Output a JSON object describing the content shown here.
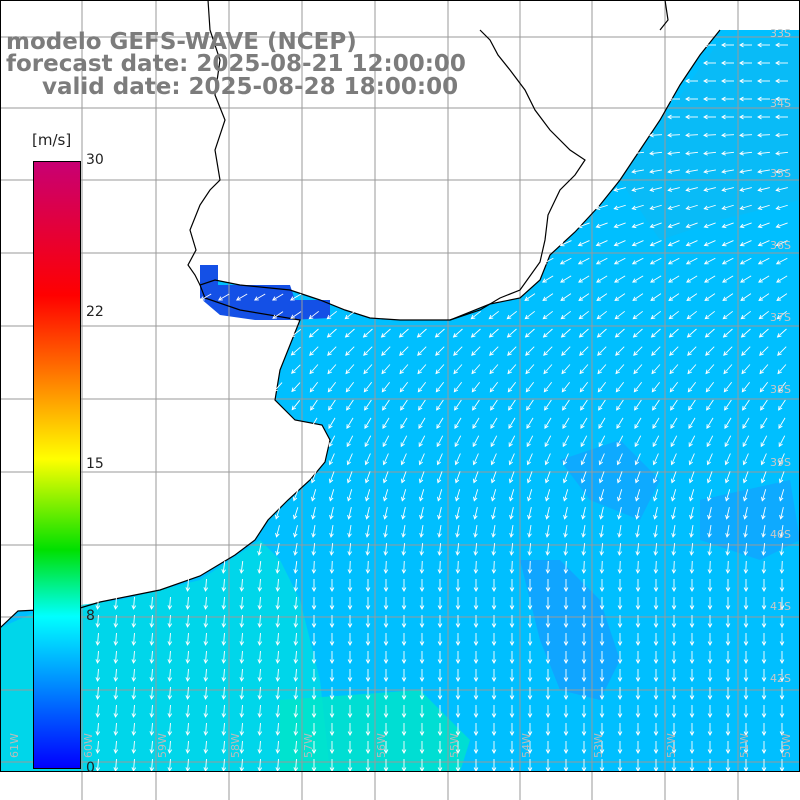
{
  "title": {
    "line1": "modelo GEFS-WAVE (NCEP)",
    "line2": "forecast date: 2025-08-21 12:00:00",
    "line3": "valid date: 2025-08-28 18:00:00"
  },
  "colorbar": {
    "unit": "[m/s]",
    "ticks": [
      {
        "label": "30",
        "value": 30
      },
      {
        "label": "22",
        "value": 22
      },
      {
        "label": "15",
        "value": 15
      },
      {
        "label": "8",
        "value": 8
      },
      {
        "label": "0",
        "value": 0
      }
    ],
    "colors": [
      "#0000ff",
      "#0064ff",
      "#00ffff",
      "#00e000",
      "#ffff00",
      "#ff6400",
      "#ff0000",
      "#c80073"
    ]
  },
  "map": {
    "lon_labels": [
      "61W",
      "60W",
      "59W",
      "58W",
      "57W",
      "56W",
      "55W",
      "54W",
      "53W",
      "52W",
      "51W",
      "50W"
    ],
    "lat_labels": [
      "33S",
      "34S",
      "35S",
      "36S",
      "37S",
      "38S",
      "39S",
      "40S",
      "41S",
      "42S"
    ],
    "field": "wind speed with direction arrows",
    "colors": {
      "ocean_low": "#1e90ff",
      "ocean_mid": "#00bfff",
      "ocean_high": "#00e6e6",
      "land": "#ffffff",
      "grid": "#9a9a9a",
      "coast": "#000000",
      "arrow": "#ffffff"
    }
  }
}
